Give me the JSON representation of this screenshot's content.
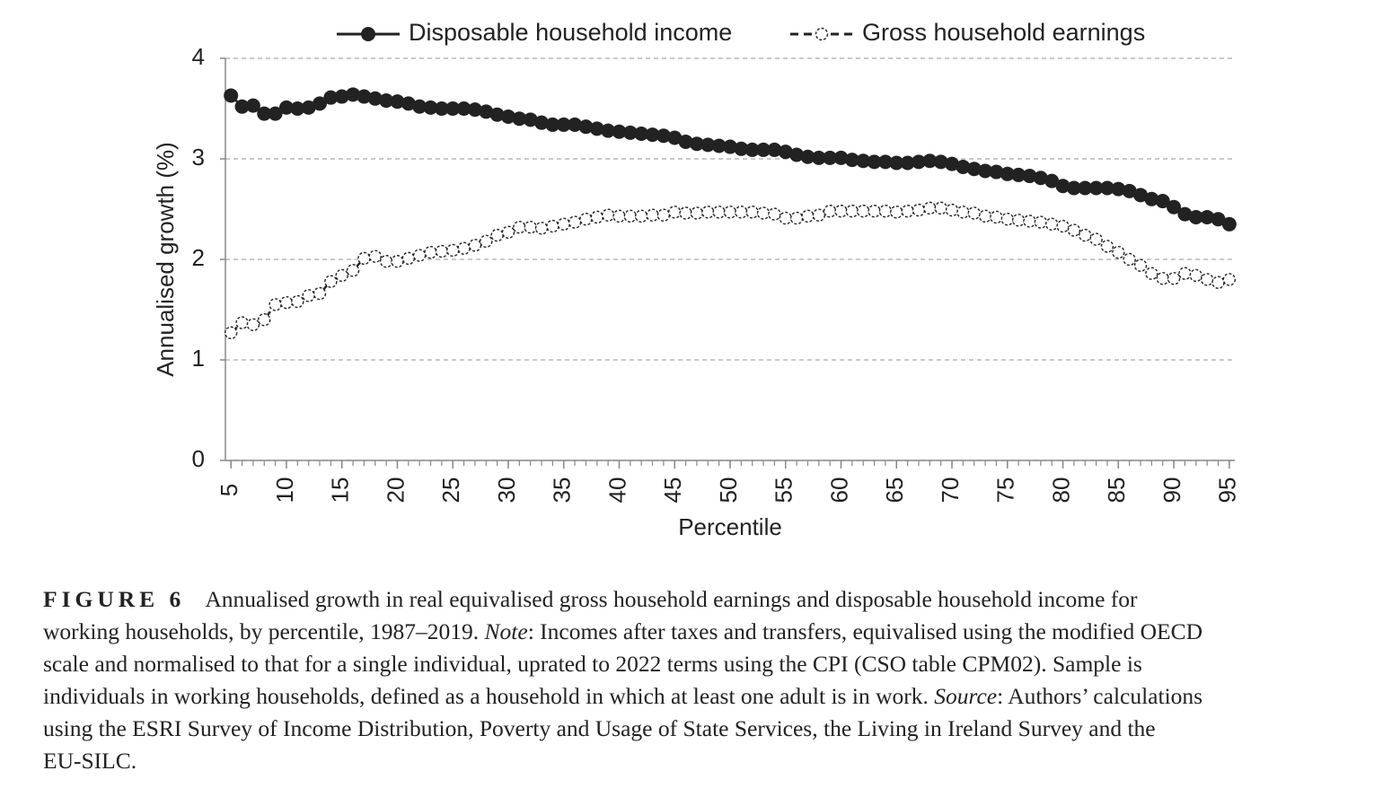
{
  "chart_data": {
    "type": "line",
    "xlabel": "Percentile",
    "ylabel": "Annualised growth (%)",
    "x": [
      5,
      6,
      7,
      8,
      9,
      10,
      11,
      12,
      13,
      14,
      15,
      16,
      17,
      18,
      19,
      20,
      21,
      22,
      23,
      24,
      25,
      26,
      27,
      28,
      29,
      30,
      31,
      32,
      33,
      34,
      35,
      36,
      37,
      38,
      39,
      40,
      41,
      42,
      43,
      44,
      45,
      46,
      47,
      48,
      49,
      50,
      51,
      52,
      53,
      54,
      55,
      56,
      57,
      58,
      59,
      60,
      61,
      62,
      63,
      64,
      65,
      66,
      67,
      68,
      69,
      70,
      71,
      72,
      73,
      74,
      75,
      76,
      77,
      78,
      79,
      80,
      81,
      82,
      83,
      84,
      85,
      86,
      87,
      88,
      89,
      90,
      91,
      92,
      93,
      94,
      95
    ],
    "series": [
      {
        "name": "Disposable household income",
        "color": "#222222",
        "dash": "solid",
        "marker": "filled",
        "values": [
          3.63,
          3.52,
          3.53,
          3.45,
          3.45,
          3.51,
          3.5,
          3.51,
          3.55,
          3.61,
          3.62,
          3.64,
          3.62,
          3.6,
          3.58,
          3.57,
          3.55,
          3.52,
          3.51,
          3.5,
          3.5,
          3.5,
          3.49,
          3.47,
          3.44,
          3.42,
          3.4,
          3.39,
          3.36,
          3.34,
          3.34,
          3.34,
          3.32,
          3.3,
          3.28,
          3.27,
          3.26,
          3.25,
          3.24,
          3.23,
          3.21,
          3.17,
          3.15,
          3.14,
          3.13,
          3.12,
          3.1,
          3.09,
          3.09,
          3.09,
          3.07,
          3.04,
          3.02,
          3.01,
          3.01,
          3.01,
          2.99,
          2.98,
          2.97,
          2.97,
          2.96,
          2.96,
          2.97,
          2.98,
          2.97,
          2.95,
          2.92,
          2.9,
          2.88,
          2.87,
          2.85,
          2.84,
          2.83,
          2.81,
          2.78,
          2.73,
          2.71,
          2.71,
          2.71,
          2.71,
          2.7,
          2.68,
          2.64,
          2.6,
          2.58,
          2.52,
          2.45,
          2.42,
          2.42,
          2.4,
          2.35
        ]
      },
      {
        "name": "Gross household earnings",
        "color": "#222222",
        "dash": "dashed",
        "marker": "open",
        "values": [
          1.27,
          1.37,
          1.35,
          1.4,
          1.55,
          1.57,
          1.58,
          1.64,
          1.66,
          1.78,
          1.84,
          1.89,
          2.01,
          2.03,
          1.98,
          1.98,
          2.01,
          2.04,
          2.07,
          2.08,
          2.09,
          2.11,
          2.14,
          2.18,
          2.24,
          2.27,
          2.32,
          2.32,
          2.31,
          2.33,
          2.35,
          2.37,
          2.4,
          2.42,
          2.44,
          2.43,
          2.43,
          2.43,
          2.44,
          2.44,
          2.47,
          2.46,
          2.46,
          2.47,
          2.47,
          2.47,
          2.47,
          2.47,
          2.46,
          2.45,
          2.41,
          2.41,
          2.43,
          2.44,
          2.48,
          2.48,
          2.48,
          2.48,
          2.48,
          2.48,
          2.47,
          2.48,
          2.49,
          2.51,
          2.51,
          2.49,
          2.47,
          2.46,
          2.43,
          2.42,
          2.4,
          2.39,
          2.38,
          2.37,
          2.35,
          2.33,
          2.29,
          2.24,
          2.2,
          2.13,
          2.07,
          2.0,
          1.94,
          1.86,
          1.81,
          1.81,
          1.86,
          1.84,
          1.8,
          1.77,
          1.8
        ]
      }
    ],
    "xlim": [
      4.5,
      95.5
    ],
    "xticks": [
      5,
      10,
      15,
      20,
      25,
      30,
      35,
      40,
      45,
      50,
      55,
      60,
      65,
      70,
      75,
      80,
      85,
      90,
      95
    ],
    "ylim": [
      0,
      4
    ],
    "yticks": [
      0,
      1,
      2,
      3,
      4
    ],
    "grid": true,
    "legend": "top"
  },
  "caption": {
    "label": "FIGURE 6",
    "lines": [
      [
        "Annualised growth in real equivalised gross household earnings and disposable household income for"
      ],
      [
        "working households, by percentile, 1987–2019.",
        "Note",
        ": Incomes after taxes and transfers, equivalised using the modified OECD"
      ],
      [
        "scale and normalised to that for a single individual, uprated to 2022 terms using the CPI (CSO table CPM02). Sample is"
      ],
      [
        "individuals in working households, defined as a household in which at least one adult is in work.",
        "Source",
        ": Authors’ calculations"
      ],
      [
        "using the ESRI Survey of Income Distribution, Poverty and Usage of State Services, the Living in Ireland Survey and the"
      ],
      [
        "EU-SILC."
      ]
    ]
  }
}
